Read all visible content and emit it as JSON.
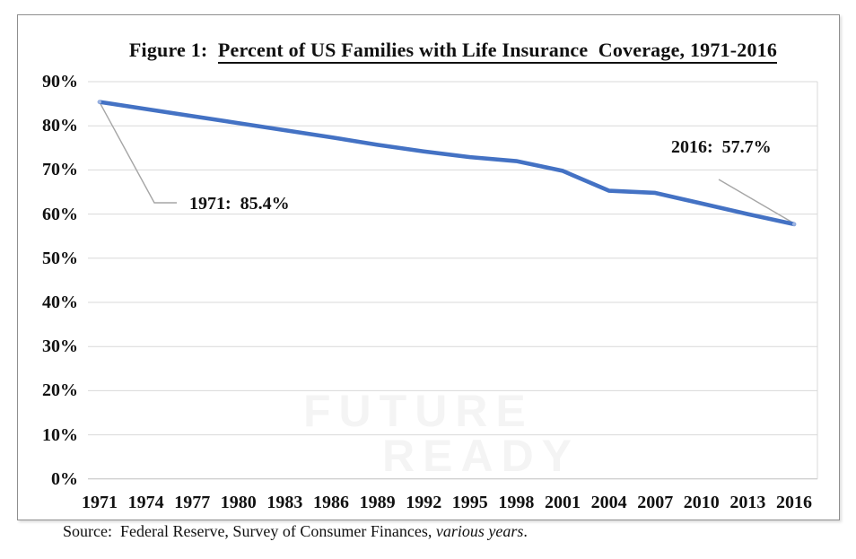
{
  "figure": {
    "title_prefix": "Figure 1:  ",
    "title_main": "Percent of US Families with Life Insurance  Coverage, 1971-2016",
    "source_prefix": "Source:  Federal Reserve, Survey of Consumer Finances, ",
    "source_italic": "various years",
    "source_suffix": "."
  },
  "watermark": {
    "line1": "FUTURE",
    "line2": "READY"
  },
  "chart_data": {
    "type": "line",
    "title": "Figure 1: Percent of US Families with Life Insurance Coverage, 1971-2016",
    "xlabel": "",
    "ylabel": "",
    "x": [
      1971,
      1974,
      1977,
      1980,
      1983,
      1986,
      1989,
      1992,
      1995,
      1998,
      2001,
      2004,
      2007,
      2010,
      2013,
      2016
    ],
    "values": [
      85.4,
      83.8,
      82.2,
      80.6,
      79.0,
      77.4,
      75.7,
      74.2,
      72.9,
      72.0,
      69.8,
      65.3,
      64.8,
      62.4,
      60.0,
      57.7
    ],
    "series_name": "Percent of US families with life insurance coverage",
    "ylim": [
      0,
      90
    ],
    "ytick_step": 10,
    "y_tick_labels": [
      "90%",
      "80%",
      "70%",
      "60%",
      "50%",
      "40%",
      "30%",
      "20%",
      "10%",
      "0%"
    ],
    "grid": true,
    "legend": "none",
    "line_color": "#4472C4",
    "gridline_color": "#d9d9d9",
    "axis_line_color": "#bfbfbf",
    "leader_line_color": "#a6a6a6",
    "annotations": [
      {
        "text": "1971:  85.4%",
        "year": 1971,
        "value": 85.4
      },
      {
        "text": "2016:  57.7%",
        "year": 2016,
        "value": 57.7
      }
    ]
  }
}
